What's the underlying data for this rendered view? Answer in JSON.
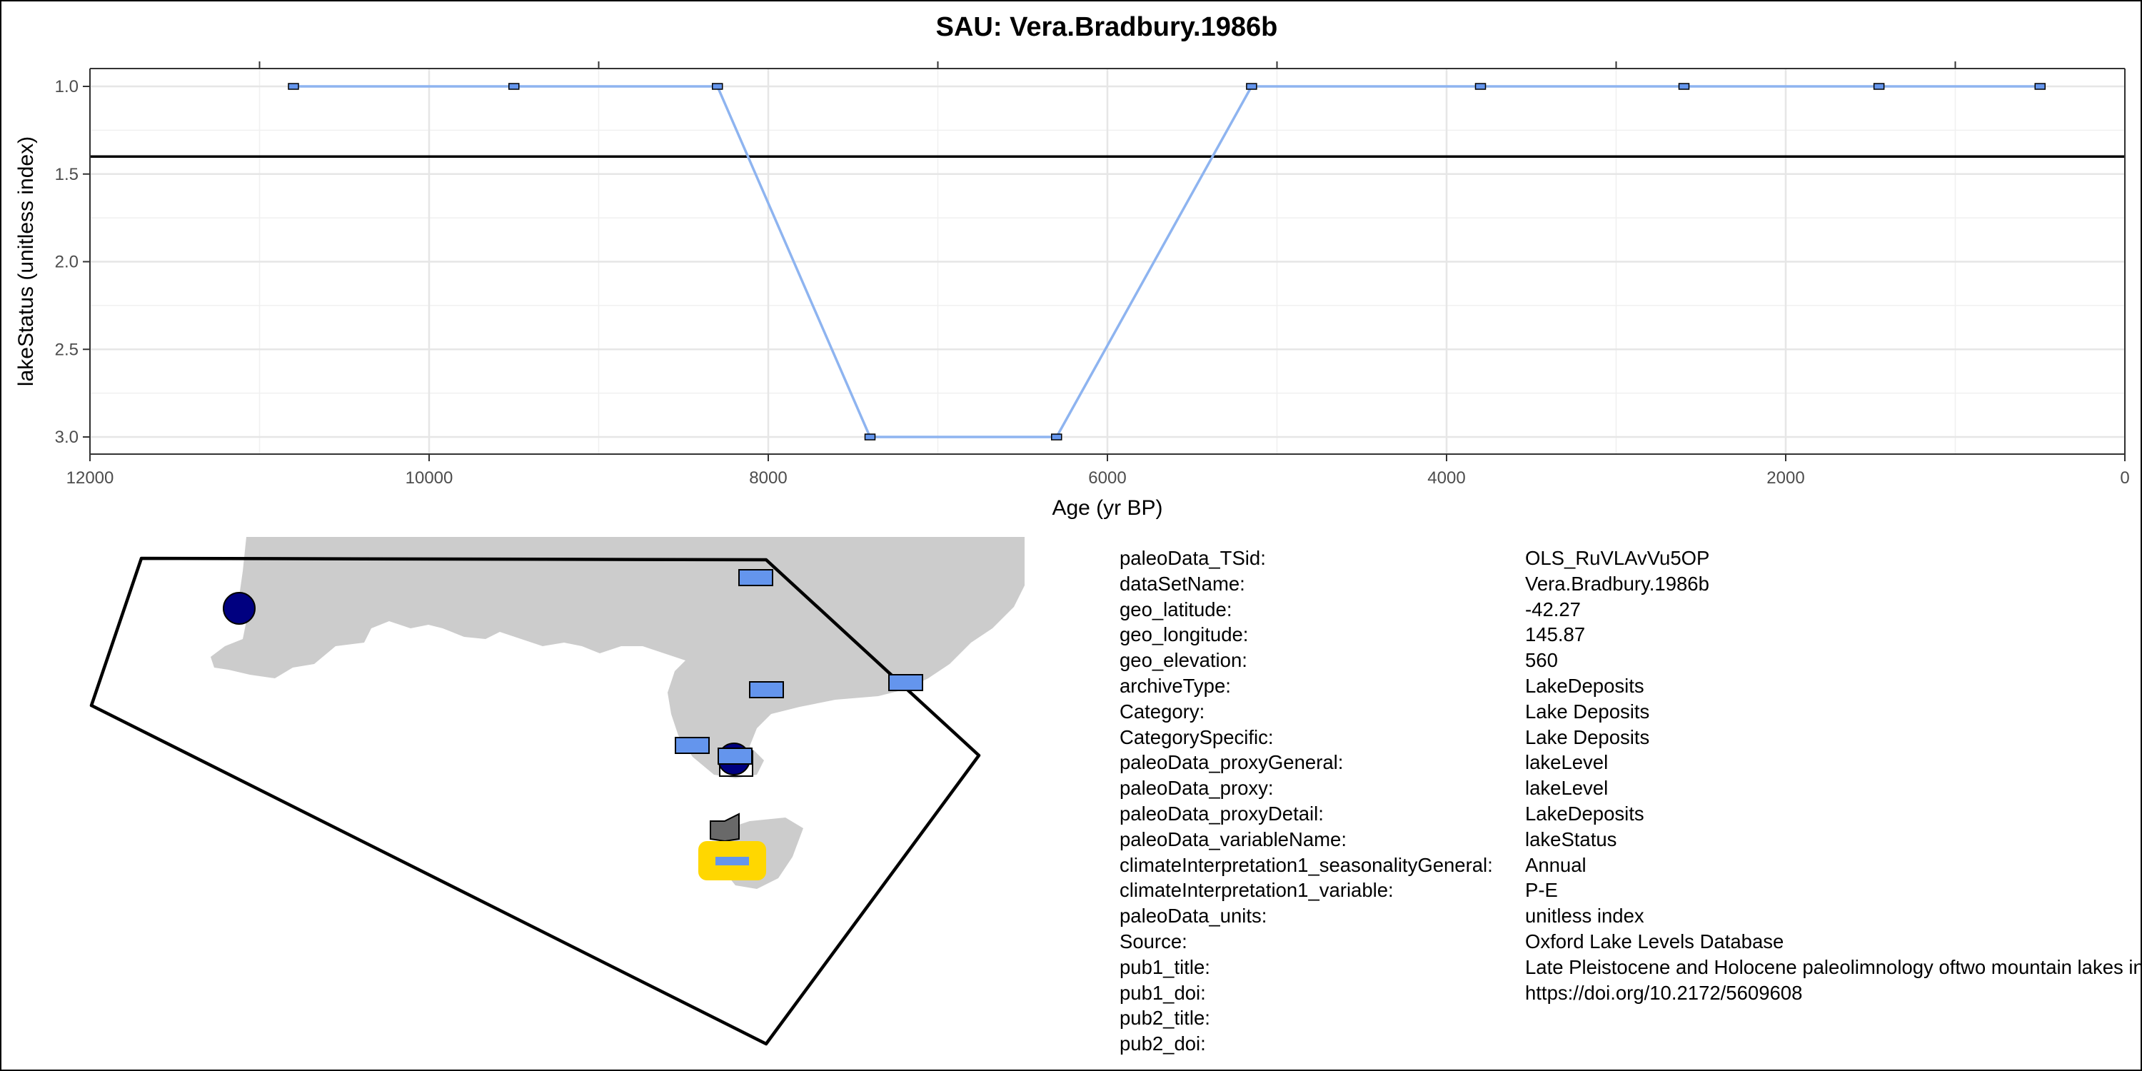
{
  "chart_data": {
    "type": "line",
    "title": "SAU: Vera.Bradbury.1986b",
    "xlabel": "Age (yr BP)",
    "ylabel": "lakeStatus (unitless index)",
    "x_axis_reversed": true,
    "y_axis_reversed": true,
    "xlim": [
      12000,
      0
    ],
    "ylim": [
      1.0,
      3.0
    ],
    "x_ticks": [
      12000,
      10000,
      8000,
      6000,
      4000,
      2000,
      0
    ],
    "y_ticks": [
      1.0,
      1.5,
      2.0,
      2.5,
      3.0
    ],
    "x_tick_labels": [
      "12000",
      "10000",
      "8000",
      "6000",
      "4000",
      "2000",
      "0"
    ],
    "y_tick_labels": [
      "1.0",
      "1.5",
      "2.0",
      "2.5",
      "3.0"
    ],
    "grid": true,
    "horizontal_reference_line": 1.4,
    "series": [
      {
        "x": [
          10800,
          9500,
          8300,
          7400,
          6300,
          5150,
          3800,
          2600,
          1450,
          500
        ],
        "y": [
          1,
          1,
          1,
          3,
          3,
          1,
          1,
          1,
          1,
          1
        ],
        "line_color": "#8EB4F0",
        "marker_color": "#6495ED",
        "marker": "square"
      }
    ]
  },
  "map": {
    "land_color": "#CCCCCC",
    "polygon_color": "#000000",
    "site_markers": [
      {
        "shape": "circle",
        "color": "#000080"
      },
      {
        "shape": "rectangle",
        "color": "#6495ED"
      },
      {
        "shape": "rectangle",
        "color": "#6495ED"
      },
      {
        "shape": "rectangle",
        "color": "#6495ED"
      },
      {
        "shape": "rectangle",
        "color": "#6495ED"
      },
      {
        "shape": "circle",
        "color": "#000080"
      },
      {
        "shape": "rectangle",
        "color": "#6495ED"
      },
      {
        "shape": "pentagon",
        "color": "#696969"
      },
      {
        "shape": "highlighted-rectangle",
        "color": "#6495ED",
        "highlight": "#FFD700"
      }
    ]
  },
  "metadata": [
    {
      "key": "paleoData_TSid:",
      "value": "OLS_RuVLAvVu5OP"
    },
    {
      "key": "dataSetName:",
      "value": "Vera.Bradbury.1986b"
    },
    {
      "key": "geo_latitude:",
      "value": "-42.27"
    },
    {
      "key": "geo_longitude:",
      "value": "145.87"
    },
    {
      "key": "geo_elevation:",
      "value": "560"
    },
    {
      "key": "archiveType:",
      "value": "LakeDeposits"
    },
    {
      "key": "Category:",
      "value": "Lake Deposits"
    },
    {
      "key": "CategorySpecific:",
      "value": "Lake Deposits"
    },
    {
      "key": "paleoData_proxyGeneral:",
      "value": "lakeLevel"
    },
    {
      "key": "paleoData_proxy:",
      "value": "lakeLevel"
    },
    {
      "key": "paleoData_proxyDetail:",
      "value": "LakeDeposits"
    },
    {
      "key": "paleoData_variableName:",
      "value": "lakeStatus"
    },
    {
      "key": "climateInterpretation1_seasonalityGeneral:",
      "value": "Annual"
    },
    {
      "key": "climateInterpretation1_variable:",
      "value": "P-E"
    },
    {
      "key": "paleoData_units:",
      "value": "unitless index"
    },
    {
      "key": "Source:",
      "value": "Oxford Lake Levels Database"
    },
    {
      "key": "pub1_title:",
      "value": "Late Pleistocene and Holocene paleolimnology oftwo mountain lakes in western Tasmania"
    },
    {
      "key": "pub1_doi:",
      "value": "https://doi.org/10.2172/5609608"
    },
    {
      "key": "pub2_title:",
      "value": ""
    },
    {
      "key": "pub2_doi:",
      "value": ""
    }
  ]
}
